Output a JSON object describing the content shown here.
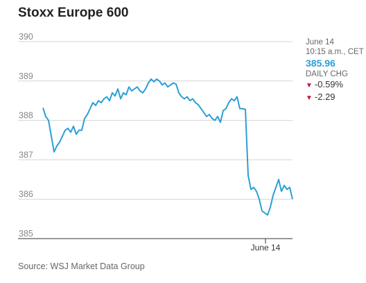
{
  "chart_data": {
    "type": "line",
    "title": "Stoxx Europe 600",
    "yticks": [
      390,
      389,
      388,
      387,
      386,
      385
    ],
    "ylim": [
      385,
      390
    ],
    "grid": "horizontal",
    "xtick_labels": [
      "June 14"
    ],
    "series": [
      {
        "color": "#2a9fd6",
        "values": [
          388.32,
          388.1,
          388.0,
          387.6,
          387.2,
          387.35,
          387.45,
          387.6,
          387.75,
          387.8,
          387.7,
          387.85,
          387.65,
          387.75,
          387.75,
          388.05,
          388.15,
          388.3,
          388.45,
          388.38,
          388.5,
          388.45,
          388.55,
          388.6,
          388.5,
          388.7,
          388.62,
          388.8,
          388.55,
          388.7,
          388.65,
          388.85,
          388.75,
          388.8,
          388.85,
          388.75,
          388.7,
          388.8,
          388.95,
          389.05,
          388.98,
          389.05,
          389.0,
          388.9,
          388.95,
          388.85,
          388.9,
          388.95,
          388.92,
          388.7,
          388.6,
          388.55,
          388.6,
          388.5,
          388.55,
          388.45,
          388.4,
          388.3,
          388.2,
          388.1,
          388.15,
          388.05,
          388.0,
          388.1,
          387.95,
          388.25,
          388.3,
          388.45,
          388.55,
          388.5,
          388.6,
          388.3,
          388.3,
          388.28,
          386.6,
          386.25,
          386.3,
          386.2,
          386.0,
          385.7,
          385.65,
          385.6,
          385.8,
          386.1,
          386.3,
          386.5,
          386.2,
          386.35,
          386.25,
          386.3,
          386.0
        ]
      }
    ],
    "values_note_excluded": true
  },
  "panel": {
    "date": "June 14",
    "time": "10:15 a.m., CET",
    "price": "385.96",
    "change_label": "DAILY CHG",
    "change_pct": "-0.59%",
    "change_abs": "-2.29"
  },
  "source": "Source: WSJ Market Data Group"
}
